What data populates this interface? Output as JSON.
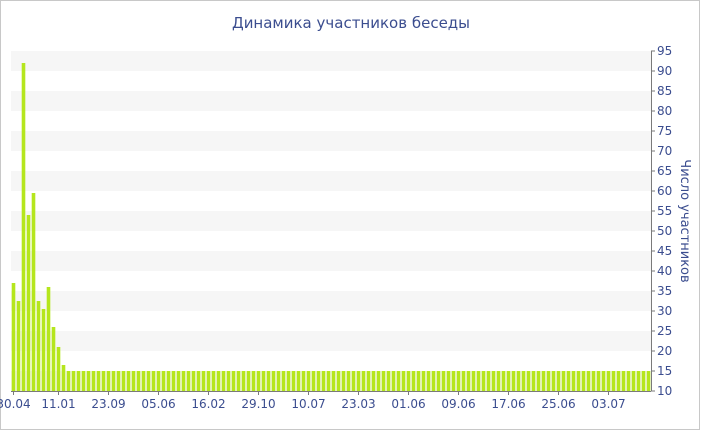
{
  "chart_data": {
    "type": "bar",
    "title": "Динамика участников беседы",
    "ylabel": "Число участников",
    "xlabel": "",
    "ylim": [
      10,
      95
    ],
    "yticks": [
      10,
      15,
      20,
      25,
      30,
      35,
      40,
      45,
      50,
      55,
      60,
      65,
      70,
      75,
      80,
      85,
      90,
      95
    ],
    "y_axis_side": "right",
    "grid": "alternating horizontal bands",
    "bar_color": "#b5e61d",
    "band_color": "#f6f6f6",
    "text_color": "#3b4d8f",
    "x_tick_labels": [
      "30.04",
      "11.01",
      "23.09",
      "05.06",
      "16.02",
      "29.10",
      "10.07",
      "23.03",
      "01.06",
      "09.06",
      "17.06",
      "25.06",
      "03.07"
    ],
    "x_tick_bar_index": [
      0,
      9,
      19,
      29,
      39,
      49,
      59,
      69,
      79,
      89,
      99,
      109,
      119
    ],
    "values": [
      37,
      32.5,
      92,
      54,
      59.5,
      32.5,
      30.5,
      36,
      26,
      21,
      16.5,
      15,
      15,
      15,
      15,
      15,
      15,
      15,
      15,
      15,
      15,
      15,
      15,
      15,
      15,
      15,
      15,
      15,
      15,
      15,
      15,
      15,
      15,
      15,
      15,
      15,
      15,
      15,
      15,
      15,
      15,
      15,
      15,
      15,
      15,
      15,
      15,
      15,
      15,
      15,
      15,
      15,
      15,
      15,
      15,
      15,
      15,
      15,
      15,
      15,
      15,
      15,
      15,
      15,
      15,
      15,
      15,
      15,
      15,
      15,
      15,
      15,
      15,
      15,
      15,
      15,
      15,
      15,
      15,
      15,
      15,
      15,
      15,
      15,
      15,
      15,
      15,
      15,
      15,
      15,
      15,
      15,
      15,
      15,
      15,
      15,
      15,
      15,
      15,
      15,
      15,
      15,
      15,
      15,
      15,
      15,
      15,
      15,
      15,
      15,
      15,
      15,
      15,
      15,
      15,
      15,
      15,
      15,
      15,
      15,
      15,
      15,
      15,
      15,
      15,
      15,
      15,
      15
    ]
  }
}
